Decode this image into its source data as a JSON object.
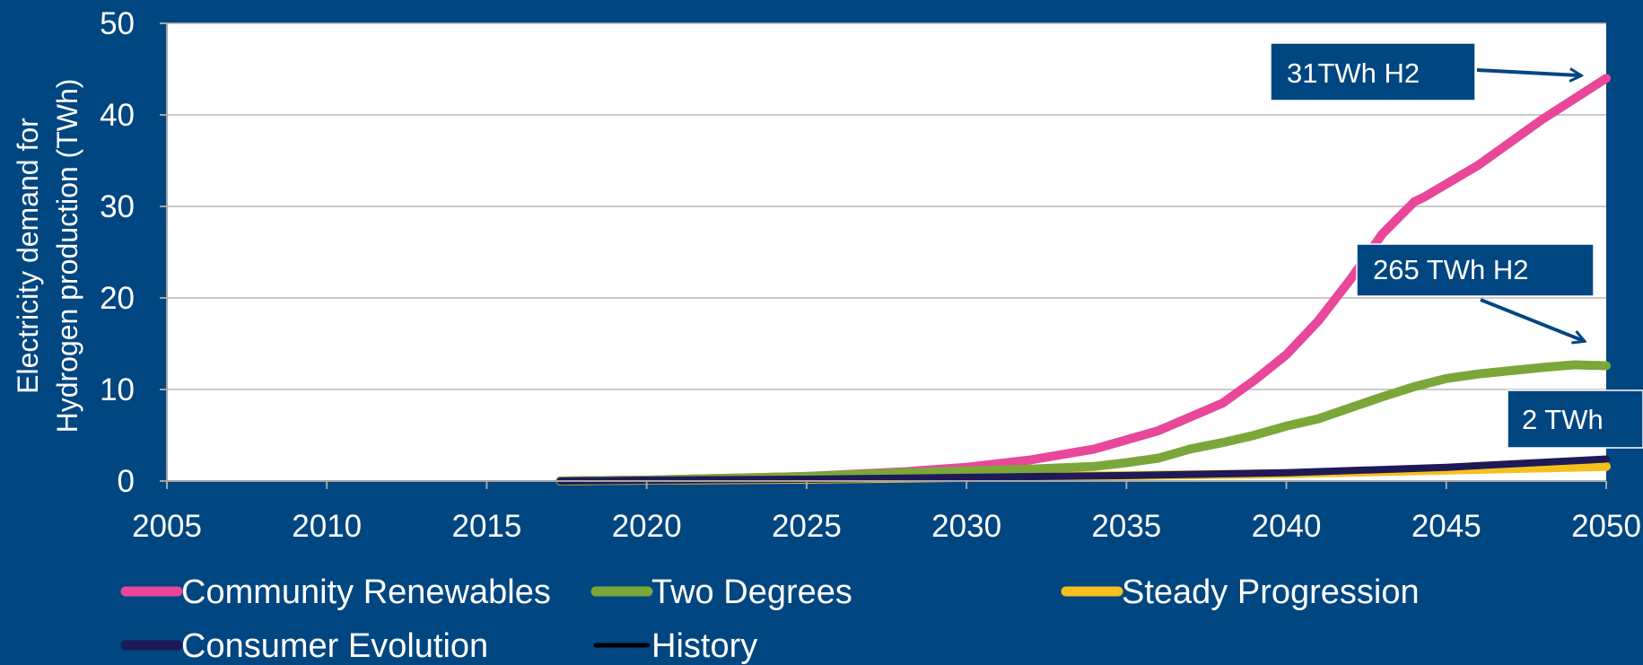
{
  "chart_data": {
    "type": "line",
    "title": "",
    "xlabel": "",
    "ylabel_lines": [
      "Electricity demand for",
      "Hydrogen production (TWh)"
    ],
    "xlim": [
      2005,
      2050
    ],
    "ylim": [
      0,
      50
    ],
    "x_ticks": [
      2005,
      2010,
      2015,
      2020,
      2025,
      2030,
      2035,
      2040,
      2045,
      2050
    ],
    "y_ticks": [
      0,
      10,
      20,
      30,
      40,
      50
    ],
    "grid": "horizontal",
    "legend_position": "bottom",
    "series": [
      {
        "name": "Community Renewables",
        "color": "#e8479a",
        "x": [
          2017.3,
          2020,
          2025,
          2028,
          2030,
          2032,
          2034,
          2036,
          2038,
          2039,
          2040,
          2041,
          2042,
          2043,
          2044,
          2044.3,
          2046,
          2048,
          2050
        ],
        "y": [
          0,
          0.1,
          0.5,
          1.0,
          1.5,
          2.3,
          3.5,
          5.5,
          8.5,
          11,
          13.8,
          17.5,
          22,
          27,
          30.5,
          31,
          34.5,
          39.5,
          44
        ]
      },
      {
        "name": "Two Degrees",
        "color": "#7ba63a",
        "x": [
          2017.3,
          2020,
          2025,
          2028,
          2030,
          2032,
          2034,
          2035,
          2036,
          2037,
          2038,
          2039,
          2040,
          2041,
          2042,
          2043,
          2044,
          2045,
          2046,
          2048,
          2049,
          2050
        ],
        "y": [
          0,
          0.1,
          0.5,
          0.9,
          1.1,
          1.3,
          1.6,
          2.0,
          2.5,
          3.5,
          4.2,
          5.0,
          6.0,
          6.8,
          8.0,
          9.2,
          10.3,
          11.2,
          11.7,
          12.4,
          12.7,
          12.6
        ]
      },
      {
        "name": "Steady Progression",
        "color": "#f4c01e",
        "x": [
          2017.3,
          2020,
          2025,
          2030,
          2035,
          2040,
          2045,
          2050
        ],
        "y": [
          0,
          0.1,
          0.2,
          0.4,
          0.6,
          0.8,
          1.2,
          1.6
        ]
      },
      {
        "name": "Consumer Evolution",
        "color": "#1e1a57",
        "x": [
          2017.3,
          2020,
          2025,
          2030,
          2035,
          2040,
          2045,
          2050
        ],
        "y": [
          0,
          0.1,
          0.2,
          0.4,
          0.6,
          0.9,
          1.5,
          2.4
        ]
      },
      {
        "name": "History",
        "color": "#000000",
        "x": [],
        "y": []
      }
    ],
    "annotations": [
      {
        "text": "31TWh H2",
        "arrow_to": [
          2049.2,
          44.3
        ]
      },
      {
        "text": "265 TWh H2",
        "arrow_to": [
          2049.3,
          15.3
        ]
      },
      {
        "text": "2 TWh",
        "arrow_to": null
      }
    ]
  }
}
